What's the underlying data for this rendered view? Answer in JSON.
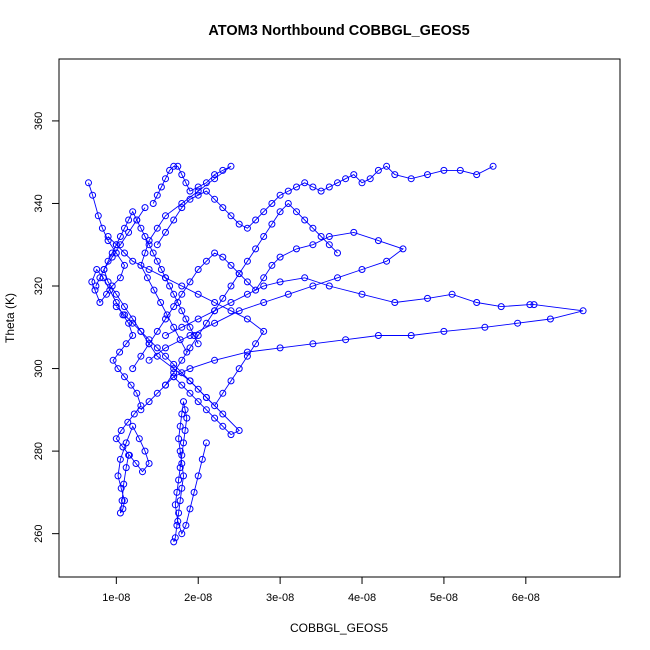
{
  "chart_data": {
    "type": "scatter",
    "title": "ATOM3 Northbound COBBGL_GEOS5",
    "xlabel": "COBBGL_GEOS5",
    "ylabel": "Theta (K)",
    "xlim": [
      3e-09,
      7.15e-08
    ],
    "ylim": [
      249.5,
      375
    ],
    "x_ticks": [
      1e-08,
      2e-08,
      3e-08,
      4e-08,
      5e-08,
      6e-08
    ],
    "x_tick_labels": [
      "1e-08",
      "2e-08",
      "3e-08",
      "4e-08",
      "5e-08",
      "6e-08"
    ],
    "y_ticks": [
      260,
      280,
      300,
      320,
      340,
      360
    ],
    "y_tick_labels": [
      "260",
      "280",
      "300",
      "320",
      "340",
      "360"
    ],
    "grid": false,
    "legend": "none",
    "point_style": "open-circle-connected",
    "series_color": "#0000ff",
    "series": [
      {
        "x": [
          6.6e-09,
          7.1e-09,
          7.8e-09,
          8.3e-09,
          9e-09,
          1e-08,
          1.1e-08,
          1.05e-08,
          9.5e-09,
          8.8e-09,
          8e-09,
          7.4e-09,
          7e-09,
          7.6e-09,
          8.4e-09,
          9.2e-09,
          1e-08,
          1.08e-08,
          1.15e-08,
          1.2e-08,
          1.12e-08,
          1.04e-08,
          9.6e-09,
          1.02e-08,
          1.1e-08,
          1.18e-08,
          1.25e-08,
          1.3e-08,
          1.22e-08,
          1.14e-08,
          1.06e-08,
          1e-08,
          1.08e-08,
          1.16e-08,
          1.24e-08,
          1.32e-08,
          1.4e-08,
          1.35e-08,
          1.28e-08,
          1.2e-08,
          1.12e-08,
          1.05e-08,
          1.02e-08,
          1.06e-08,
          1.1e-08,
          1.08e-08,
          1.05e-08,
          1.07e-08,
          1.09e-08,
          1.12e-08,
          1.15e-08
        ],
        "y": [
          345,
          342,
          337,
          334,
          331,
          328,
          325,
          322,
          320,
          318,
          316,
          319,
          321,
          324,
          322,
          319,
          316,
          313,
          311,
          308,
          306,
          304,
          302,
          300,
          298,
          296,
          294,
          291,
          289,
          287,
          285,
          283,
          281,
          279,
          277,
          275,
          277,
          280,
          283,
          286,
          282,
          278,
          274,
          271,
          268,
          266,
          265,
          268,
          272,
          276,
          279
        ]
      },
      {
        "x": [
          1.7e-08,
          1.72e-08,
          1.74e-08,
          1.76e-08,
          1.78e-08,
          1.8e-08,
          1.82e-08,
          1.8e-08,
          1.78e-08,
          1.76e-08,
          1.78e-08,
          1.8e-08,
          1.82e-08,
          1.84e-08,
          1.86e-08,
          1.84e-08,
          1.82e-08,
          1.8e-08,
          1.78e-08,
          1.76e-08,
          1.74e-08,
          1.72e-08,
          1.75e-08,
          1.8e-08,
          1.85e-08,
          1.9e-08,
          1.95e-08,
          2e-08,
          2.05e-08,
          2.1e-08
        ],
        "y": [
          258,
          259,
          262,
          265,
          268,
          271,
          274,
          277,
          280,
          283,
          286,
          289,
          292,
          290,
          288,
          285,
          282,
          279,
          276,
          273,
          270,
          267,
          263,
          260,
          262,
          266,
          270,
          274,
          278,
          282
        ]
      },
      {
        "x": [
          1.5e-08,
          1.6e-08,
          1.7e-08,
          1.8e-08,
          1.9e-08,
          2e-08,
          2.1e-08,
          2.2e-08,
          2.3e-08,
          2.4e-08,
          2.5e-08,
          2.6e-08,
          2.7e-08,
          2.8e-08,
          2.9e-08,
          3e-08,
          3.1e-08,
          3.2e-08,
          3.3e-08,
          3.4e-08,
          3.5e-08,
          3.6e-08,
          3.7e-08,
          3.8e-08,
          3.9e-08,
          4e-08,
          4.1e-08,
          4.2e-08,
          4.3e-08,
          4.4e-08,
          4.6e-08,
          4.8e-08,
          5e-08,
          5.2e-08,
          5.4e-08,
          5.6e-08
        ],
        "y": [
          330,
          333,
          336,
          339,
          341,
          342,
          343,
          341,
          339,
          337,
          335,
          334,
          336,
          338,
          340,
          342,
          343,
          344,
          345,
          344,
          343,
          344,
          345,
          346,
          347,
          345,
          346,
          348,
          349,
          347,
          346,
          347,
          348,
          348,
          347,
          349
        ]
      },
      {
        "x": [
          1.6e-08,
          1.8e-08,
          2e-08,
          2.2e-08,
          2.4e-08,
          2.6e-08,
          2.8e-08,
          3e-08,
          3.3e-08,
          3.6e-08,
          4e-08,
          4.4e-08,
          4.8e-08,
          5.1e-08,
          5.4e-08,
          5.7e-08,
          6.05e-08,
          6.1e-08,
          6.7e-08,
          6.3e-08,
          5.9e-08,
          5.5e-08,
          5e-08,
          4.6e-08,
          4.2e-08,
          3.8e-08,
          3.4e-08,
          3e-08,
          2.6e-08,
          2.2e-08,
          1.9e-08,
          1.7e-08
        ],
        "y": [
          308,
          310,
          312,
          314,
          316,
          318,
          320,
          321,
          322,
          320,
          318,
          316,
          317,
          318,
          316,
          315,
          315.5,
          315.5,
          314,
          312,
          311,
          310,
          309,
          308,
          308,
          307,
          306,
          305,
          304,
          302,
          300,
          298
        ]
      },
      {
        "x": [
          1.2e-08,
          1.3e-08,
          1.4e-08,
          1.5e-08,
          1.6e-08,
          1.7e-08,
          1.8e-08,
          1.9e-08,
          2e-08,
          2.1e-08,
          2.2e-08,
          2.3e-08,
          2.4e-08,
          2.5e-08,
          2.6e-08,
          2.7e-08,
          2.8e-08,
          2.9e-08,
          3e-08,
          3.2e-08,
          3.4e-08,
          3.6e-08,
          3.9e-08,
          4.2e-08,
          4.5e-08,
          4.3e-08,
          4e-08,
          3.7e-08,
          3.4e-08,
          3.1e-08,
          2.8e-08,
          2.5e-08,
          2.2e-08,
          1.9e-08,
          1.6e-08,
          1.4e-08
        ],
        "y": [
          300,
          303,
          306,
          309,
          312,
          315,
          318,
          321,
          324,
          326,
          328,
          327,
          325,
          323,
          321,
          319,
          322,
          325,
          327,
          329,
          330,
          332,
          333,
          331,
          329,
          326,
          324,
          322,
          320,
          318,
          316,
          314,
          311,
          308,
          305,
          302
        ]
      },
      {
        "x": [
          1.3e-08,
          1.4e-08,
          1.5e-08,
          1.6e-08,
          1.7e-08,
          1.8e-08,
          1.9e-08,
          2e-08,
          2.1e-08,
          2.2e-08,
          2.3e-08,
          2.4e-08,
          2.5e-08,
          2.3e-08,
          2.1e-08,
          1.9e-08,
          1.7e-08,
          1.5e-08,
          1.4e-08,
          1.3e-08,
          1.2e-08,
          1.1e-08,
          1e-08,
          9e-09,
          8.5e-09,
          9.5e-09,
          1.05e-08,
          1.15e-08,
          1.25e-08,
          1.35e-08
        ],
        "y": [
          290,
          292,
          294,
          296,
          298,
          296,
          294,
          292,
          290,
          288,
          286,
          284,
          285,
          289,
          293,
          297,
          300,
          303,
          306,
          309,
          312,
          315,
          318,
          321,
          324,
          327,
          330,
          333,
          336,
          339
        ]
      },
      {
        "x": [
          1.45e-08,
          1.5e-08,
          1.55e-08,
          1.6e-08,
          1.65e-08,
          1.7e-08,
          1.75e-08,
          1.8e-08,
          1.85e-08,
          1.9e-08,
          2e-08,
          2.1e-08,
          2.2e-08,
          2.3e-08,
          2.4e-08,
          2.2e-08,
          2e-08,
          1.8e-08,
          1.6e-08,
          1.5e-08,
          1.4e-08,
          1.35e-08,
          1.3e-08,
          1.38e-08,
          1.46e-08,
          1.54e-08,
          1.62e-08,
          1.7e-08,
          1.78e-08,
          1.86e-08
        ],
        "y": [
          340,
          342,
          344,
          346,
          348,
          349,
          349,
          347,
          345,
          343,
          344,
          345,
          347,
          348,
          349,
          346,
          343,
          340,
          337,
          334,
          331,
          328,
          325,
          322,
          319,
          316,
          313,
          310,
          307,
          304
        ]
      },
      {
        "x": [
          1e-08,
          1.1e-08,
          1.2e-08,
          1.3e-08,
          1.4e-08,
          1.5e-08,
          1.6e-08,
          1.7e-08,
          1.8e-08,
          1.9e-08,
          2e-08,
          2.1e-08,
          2.2e-08,
          2.3e-08,
          2.4e-08,
          2.5e-08,
          2.6e-08,
          2.7e-08,
          2.8e-08,
          2.6e-08,
          2.4e-08,
          2.2e-08,
          2e-08,
          1.8e-08,
          1.6e-08,
          1.4e-08,
          1.2e-08,
          1.1e-08,
          1e-08,
          9e-09
        ],
        "y": [
          315,
          313,
          311,
          309,
          307,
          305,
          303,
          301,
          299,
          297,
          295,
          293,
          291,
          294,
          297,
          300,
          303,
          306,
          309,
          312,
          314,
          316,
          318,
          320,
          322,
          324,
          326,
          328,
          330,
          332
        ]
      },
      {
        "x": [
          7.5e-09,
          8e-09,
          8.5e-09,
          9e-09,
          9.5e-09,
          1e-08,
          1.05e-08,
          1.1e-08,
          1.15e-08,
          1.2e-08,
          1.25e-08,
          1.3e-08,
          1.35e-08,
          1.4e-08,
          1.45e-08,
          1.5e-08,
          1.55e-08,
          1.6e-08,
          1.65e-08,
          1.7e-08,
          1.75e-08,
          1.8e-08,
          1.85e-08,
          1.9e-08,
          1.95e-08,
          2e-08
        ],
        "y": [
          320,
          322,
          324,
          326,
          328,
          330,
          332,
          334,
          336,
          338,
          336,
          334,
          332,
          330,
          328,
          326,
          324,
          322,
          320,
          318,
          316,
          314,
          312,
          310,
          308,
          306
        ]
      },
      {
        "x": [
          1.6e-08,
          1.7e-08,
          1.8e-08,
          1.9e-08,
          2e-08,
          2.1e-08,
          2.2e-08,
          2.3e-08,
          2.4e-08,
          2.5e-08,
          2.6e-08,
          2.7e-08,
          2.8e-08,
          2.9e-08,
          3e-08,
          3.1e-08,
          3.2e-08,
          3.3e-08,
          3.4e-08,
          3.5e-08,
          3.6e-08,
          3.7e-08
        ],
        "y": [
          296,
          299,
          302,
          305,
          308,
          311,
          314,
          317,
          320,
          323,
          326,
          329,
          332,
          335,
          338,
          340,
          338,
          336,
          334,
          332,
          330,
          328
        ]
      }
    ]
  }
}
